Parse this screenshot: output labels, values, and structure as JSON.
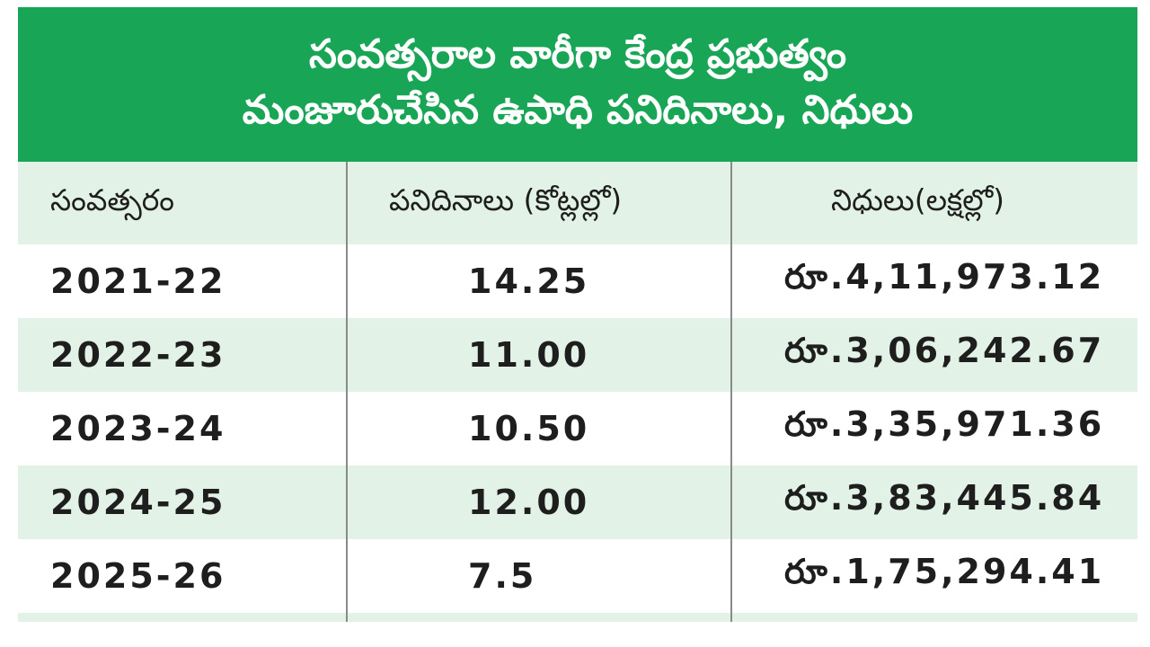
{
  "title": {
    "line1": "సంవత్సరాల వారీగా కేంద్ర ప్రభుత్వం",
    "line2": "మంజూరుచేసిన ఉపాధి పనిదినాలు, నిధులు"
  },
  "table": {
    "headers": [
      "సంవత్సరం",
      "పనిదినాలు (కోట్లల్లో)",
      "నిధులు(లక్షల్లో)"
    ],
    "rows": [
      {
        "year": "2021-22",
        "workdays": "14.25",
        "funds": "రూ.4,11,973.12"
      },
      {
        "year": "2022-23",
        "workdays": "11.00",
        "funds": "రూ.3,06,242.67"
      },
      {
        "year": "2023-24",
        "workdays": "10.50",
        "funds": "రూ.3,35,971.36"
      },
      {
        "year": "2024-25",
        "workdays": "12.00",
        "funds": "రూ.3,83,445.84"
      },
      {
        "year": "2025-26",
        "workdays": "7.5",
        "funds": "రూ.1,75,294.41"
      }
    ]
  },
  "colors": {
    "header_green": "#19a556",
    "row_tint": "#e3f2e6",
    "text": "#1e1e1e"
  }
}
